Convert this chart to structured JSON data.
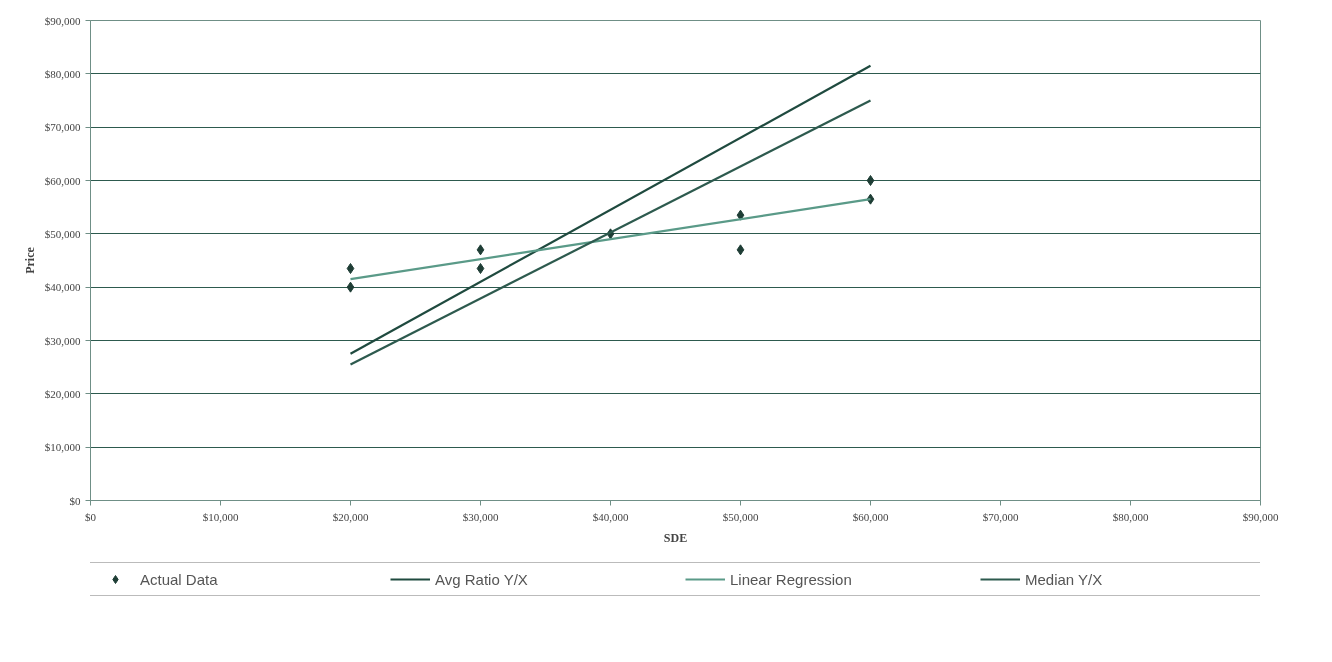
{
  "chart_data": {
    "type": "line",
    "xlabel": "SDE",
    "ylabel": "Price",
    "xlim": [
      0,
      90000
    ],
    "ylim": [
      0,
      90000
    ],
    "xticks": [
      {
        "value": 0,
        "label": "$0"
      },
      {
        "value": 10000,
        "label": "$10,000"
      },
      {
        "value": 20000,
        "label": "$20,000"
      },
      {
        "value": 30000,
        "label": "$30,000"
      },
      {
        "value": 40000,
        "label": "$40,000"
      },
      {
        "value": 50000,
        "label": "$50,000"
      },
      {
        "value": 60000,
        "label": "$60,000"
      },
      {
        "value": 70000,
        "label": "$70,000"
      },
      {
        "value": 80000,
        "label": "$80,000"
      },
      {
        "value": 90000,
        "label": "$90,000"
      }
    ],
    "yticks": [
      {
        "value": 0,
        "label": "$0"
      },
      {
        "value": 10000,
        "label": "$10,000"
      },
      {
        "value": 20000,
        "label": "$20,000"
      },
      {
        "value": 30000,
        "label": "$30,000"
      },
      {
        "value": 40000,
        "label": "$40,000"
      },
      {
        "value": 50000,
        "label": "$50,000"
      },
      {
        "value": 60000,
        "label": "$60,000"
      },
      {
        "value": 70000,
        "label": "$70,000"
      },
      {
        "value": 80000,
        "label": "$80,000"
      },
      {
        "value": 90000,
        "label": "$90,000"
      }
    ],
    "grid": "y",
    "legend": "bottom",
    "line_style": "solid",
    "series": [
      {
        "name": "Actual Data",
        "type": "scatter",
        "marker": "diamond",
        "color": "#1e3d35",
        "x": [
          20000,
          20000,
          30000,
          30000,
          40000,
          50000,
          50000,
          60000,
          60000
        ],
        "values": [
          43500,
          40000,
          47000,
          43500,
          50000,
          53500,
          47000,
          60000,
          56500
        ]
      },
      {
        "name": "Avg Ratio Y/X",
        "color": "#1f4a3f",
        "x": [
          20000,
          60000
        ],
        "values": [
          27500,
          81500
        ]
      },
      {
        "name": "Linear Regression",
        "color": "#5a9a88",
        "x": [
          20000,
          60000
        ],
        "values": [
          41500,
          56500
        ]
      },
      {
        "name": "Median Y/X",
        "color": "#2d5a4e",
        "x": [
          20000,
          60000
        ],
        "values": [
          25500,
          75000
        ]
      }
    ]
  }
}
